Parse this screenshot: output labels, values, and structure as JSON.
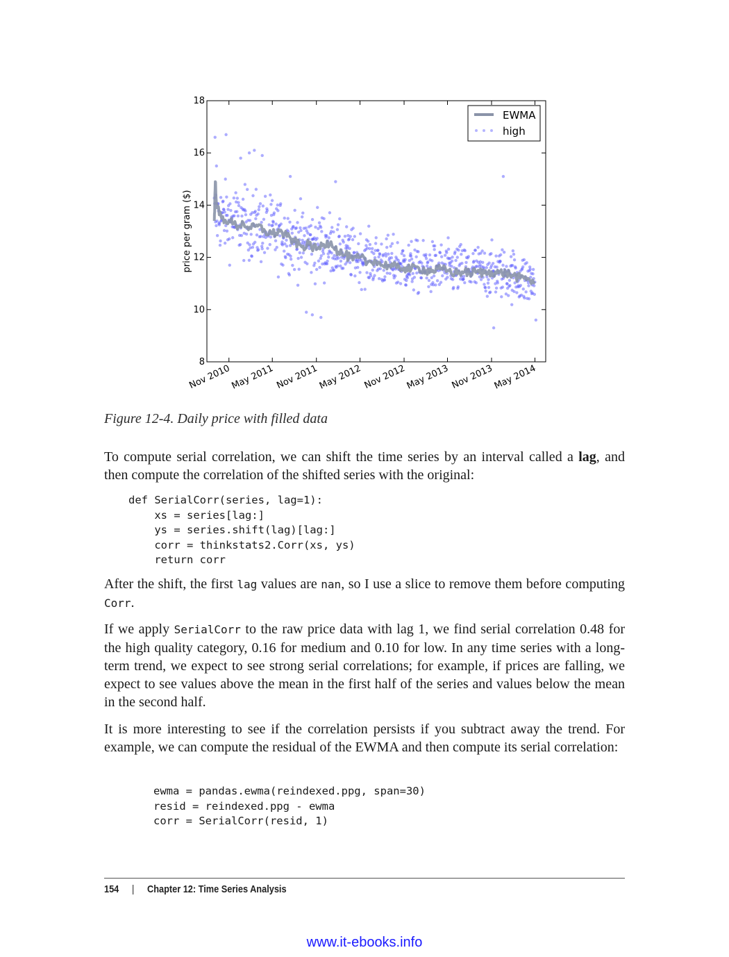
{
  "figure": {
    "caption": "Figure 12-4. Daily price with filled data",
    "chart_data": {
      "type": "scatter",
      "ylabel": "price per gram ($)",
      "ylim": [
        8,
        18
      ],
      "yticks": [
        8,
        10,
        12,
        14,
        16,
        18
      ],
      "xticks": [
        "Nov 2010",
        "May 2011",
        "Nov 2011",
        "May 2012",
        "Nov 2012",
        "May 2013",
        "Nov 2013",
        "May 2014"
      ],
      "xlim": [
        "2010-08-01",
        "2014-06-15"
      ],
      "legend_position": "top-right",
      "grid": false,
      "series": [
        {
          "name": "EWMA",
          "kind": "line",
          "color": "#8a93a8",
          "points": [
            [
              "2010-09-01",
              13.4
            ],
            [
              "2010-09-05",
              14.9
            ],
            [
              "2010-09-12",
              13.9
            ],
            [
              "2010-10-01",
              13.5
            ],
            [
              "2010-11-01",
              13.4
            ],
            [
              "2010-12-01",
              13.2
            ],
            [
              "2011-01-01",
              13.3
            ],
            [
              "2011-02-01",
              13.1
            ],
            [
              "2011-03-01",
              13.2
            ],
            [
              "2011-04-01",
              13.0
            ],
            [
              "2011-05-01",
              12.9
            ],
            [
              "2011-06-01",
              13.0
            ],
            [
              "2011-07-01",
              12.8
            ],
            [
              "2011-08-01",
              12.6
            ],
            [
              "2011-09-01",
              12.4
            ],
            [
              "2011-10-01",
              12.5
            ],
            [
              "2011-11-01",
              12.3
            ],
            [
              "2011-12-01",
              12.5
            ],
            [
              "2012-01-01",
              12.6
            ],
            [
              "2012-02-01",
              12.2
            ],
            [
              "2012-03-01",
              12.1
            ],
            [
              "2012-04-01",
              11.9
            ],
            [
              "2012-05-01",
              12.0
            ],
            [
              "2012-06-01",
              11.8
            ],
            [
              "2012-07-01",
              11.9
            ],
            [
              "2012-08-01",
              11.7
            ],
            [
              "2012-09-01",
              11.7
            ],
            [
              "2012-10-01",
              11.6
            ],
            [
              "2012-11-01",
              11.6
            ],
            [
              "2012-12-01",
              11.55
            ],
            [
              "2013-01-01",
              11.6
            ],
            [
              "2013-02-01",
              11.5
            ],
            [
              "2013-03-01",
              11.5
            ],
            [
              "2013-04-01",
              11.55
            ],
            [
              "2013-05-01",
              11.5
            ],
            [
              "2013-06-01",
              11.4
            ],
            [
              "2013-07-01",
              11.45
            ],
            [
              "2013-08-01",
              11.4
            ],
            [
              "2013-09-01",
              11.45
            ],
            [
              "2013-10-01",
              11.4
            ],
            [
              "2013-11-01",
              11.45
            ],
            [
              "2013-12-01",
              11.4
            ],
            [
              "2014-01-01",
              11.4
            ],
            [
              "2014-02-01",
              11.3
            ],
            [
              "2014-03-01",
              11.2
            ],
            [
              "2014-04-01",
              11.2
            ],
            [
              "2014-05-01",
              11.0
            ]
          ]
        },
        {
          "name": "high",
          "kind": "scatter",
          "color": "#5b5bff",
          "trend": [
            [
              "2010-09-01",
              13.6
            ],
            [
              "2011-01-01",
              13.3
            ],
            [
              "2011-05-01",
              13.0
            ],
            [
              "2011-09-01",
              12.6
            ],
            [
              "2012-01-01",
              12.4
            ],
            [
              "2012-05-01",
              12.0
            ],
            [
              "2012-09-01",
              11.8
            ],
            [
              "2013-01-01",
              11.6
            ],
            [
              "2013-05-01",
              11.55
            ],
            [
              "2013-09-01",
              11.5
            ],
            [
              "2014-01-01",
              11.4
            ],
            [
              "2014-05-01",
              11.0
            ]
          ],
          "outliers": [
            [
              "2010-09-04",
              16.6
            ],
            [
              "2010-09-10",
              15.5
            ],
            [
              "2010-10-20",
              16.7
            ],
            [
              "2010-12-20",
              15.8
            ],
            [
              "2011-01-25",
              16.0
            ],
            [
              "2011-02-15",
              16.1
            ],
            [
              "2011-03-20",
              15.9
            ],
            [
              "2011-07-15",
              15.1
            ],
            [
              "2012-01-20",
              14.9
            ],
            [
              "2013-12-20",
              15.1
            ],
            [
              "2013-11-10",
              9.3
            ],
            [
              "2011-09-20",
              9.9
            ],
            [
              "2011-11-20",
              9.7
            ],
            [
              "2014-05-05",
              9.6
            ],
            [
              "2011-10-15",
              9.8
            ]
          ]
        }
      ]
    }
  },
  "body": {
    "p1_before": "To compute serial correlation, we can shift the time series by an interval called a ",
    "p1_bold": "lag",
    "p1_after": ", and then compute the correlation of the shifted series with the original:",
    "code1": [
      "def SerialCorr(series, lag=1):",
      "    xs = series[lag:]",
      "    ys = series.shift(lag)[lag:]",
      "    corr = thinkstats2.Corr(xs, ys)",
      "    return corr"
    ],
    "p2_a": "After the shift, the first ",
    "p2_code1": "lag",
    "p2_b": " values are ",
    "p2_code2": "nan",
    "p2_c": ", so I use a slice to remove them before computing ",
    "p2_code3": "Corr",
    "p2_d": ".",
    "p3_a": "If we apply ",
    "p3_code": "SerialCorr",
    "p3_b": " to the raw price data with lag 1, we find serial correlation 0.48 for the high quality category, 0.16 for medium and 0.10 for low. In any time series with a long-term trend, we expect to see strong serial correlations; for example, if prices are falling, we expect to see values above the mean in the first half of the series and values below the mean in the second half.",
    "p4": "It is more interesting to see if the correlation persists if you subtract away the trend. For example, we can compute the residual of the EWMA and then compute its serial correlation:",
    "code2": [
      "ewma = pandas.ewma(reindexed.ppg, span=30)",
      "resid = reindexed.ppg - ewma",
      "corr = SerialCorr(resid, 1)"
    ]
  },
  "footer": {
    "page_number": "154",
    "separator": "|",
    "chapter": "Chapter 12: Time Series Analysis"
  },
  "watermark": "www.it-ebooks.info"
}
